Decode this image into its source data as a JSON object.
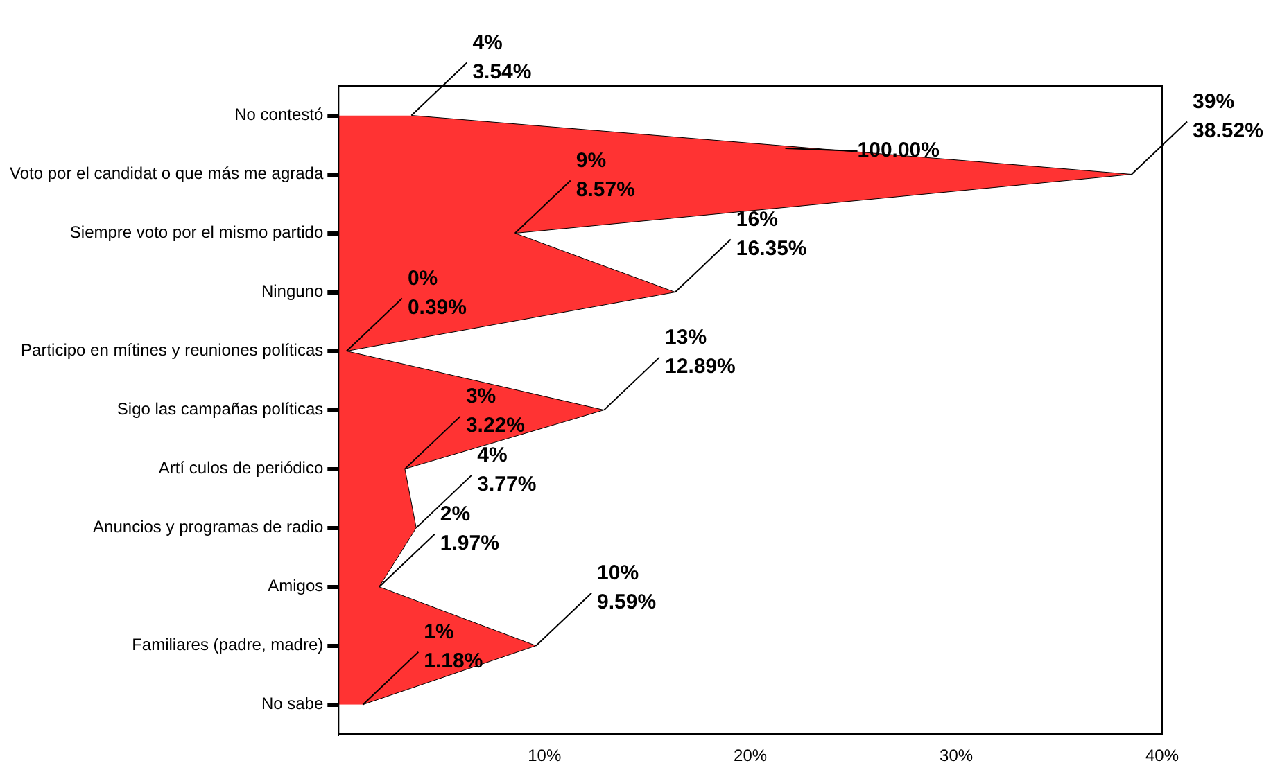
{
  "chart_data": {
    "type": "area",
    "orientation": "horizontal",
    "categories": [
      "No contestó",
      "Voto por el candidat o que más me agrada",
      "Siempre voto por el mismo partido",
      "Ninguno",
      "Participo en mítines y reuniones políticas",
      "Sigo las campañas políticas",
      "Artí culos de periódico",
      "Anuncios y programas de radio",
      "Amigos",
      "Familiares (padre, madre)",
      "No sabe"
    ],
    "values": [
      3.54,
      38.52,
      8.57,
      16.35,
      0.39,
      12.89,
      3.22,
      3.77,
      1.97,
      9.59,
      1.18
    ],
    "value_labels": [
      "4%\n3.54%",
      "39%\n38.52%",
      "9%\n8.57%",
      "16%\n16.35%",
      "0%\n0.39%",
      "13%\n12.89%",
      "3%\n3.22%",
      "4%\n3.77%",
      "2%\n1.97%",
      "10%\n9.59%",
      "1%\n1.18%"
    ],
    "color": "#ff3333",
    "xlim": [
      0,
      40
    ],
    "xticks": [
      {
        "value": 0,
        "label": null
      },
      {
        "value": 10,
        "label": "10%"
      },
      {
        "value": 20,
        "label": "20%"
      },
      {
        "value": 30,
        "label": "30%"
      },
      {
        "value": 40,
        "label": "40%"
      }
    ],
    "annotations": [
      "100.00%"
    ],
    "grid": false,
    "legend": false
  }
}
